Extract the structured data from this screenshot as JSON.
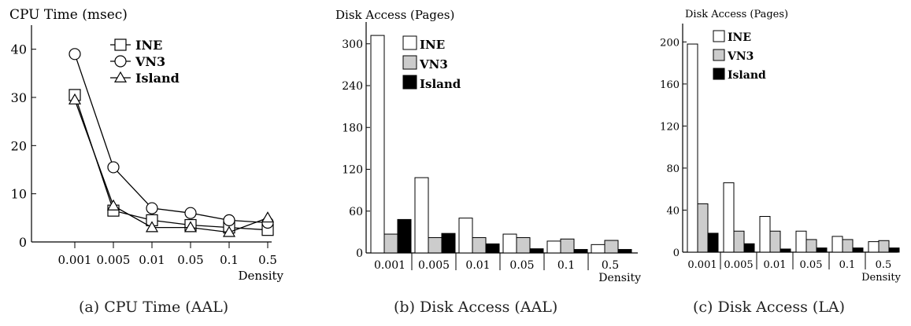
{
  "chart_data": [
    {
      "type": "line",
      "title": "CPU Time (msec)",
      "xlabel": "Density",
      "categories": [
        "0.001",
        "0.005",
        "0.01",
        "0.05",
        "0.1",
        "0.5"
      ],
      "ylim": [
        0,
        45
      ],
      "yticks": [
        0,
        10,
        20,
        30,
        40
      ],
      "legend_position": "top-center",
      "series": [
        {
          "name": "INE",
          "marker": "square",
          "values": [
            30.5,
            6.5,
            4.5,
            3.5,
            3.0,
            2.5
          ]
        },
        {
          "name": "VN3",
          "marker": "circle",
          "values": [
            39,
            15.5,
            7,
            6,
            4.5,
            4
          ]
        },
        {
          "name": "Island",
          "marker": "triangle",
          "values": [
            29.5,
            7.5,
            3,
            3,
            2,
            5
          ]
        }
      ],
      "caption": "(a)  CPU Time (AAL)"
    },
    {
      "type": "bar",
      "title": "Disk Access (Pages)",
      "xlabel": "Density",
      "categories": [
        "0.001",
        "0.005",
        "0.01",
        "0.05",
        "0.1",
        "0.5"
      ],
      "ylim": [
        0,
        320
      ],
      "yticks": [
        0,
        60,
        120,
        180,
        240,
        300
      ],
      "legend_position": "top-left",
      "series": [
        {
          "name": "INE",
          "fill": "#ffffff",
          "values": [
            312,
            108,
            50,
            27,
            17,
            12
          ]
        },
        {
          "name": "VN3",
          "fill": "#cccccc",
          "values": [
            27,
            22,
            22,
            22,
            20,
            18
          ]
        },
        {
          "name": "Island",
          "fill": "#000000",
          "values": [
            48,
            28,
            13,
            6,
            5,
            5
          ]
        }
      ],
      "caption": "(b)  Disk Access (AAL)"
    },
    {
      "type": "bar",
      "title": "Disk Access (Pages)",
      "xlabel": "Density",
      "categories": [
        "0.001",
        "0.005",
        "0.01",
        "0.05",
        "0.1",
        "0.5"
      ],
      "ylim": [
        0,
        210
      ],
      "yticks": [
        0,
        40,
        80,
        120,
        160,
        200
      ],
      "legend_position": "top-left",
      "series": [
        {
          "name": "INE",
          "fill": "#ffffff",
          "values": [
            198,
            66,
            34,
            20,
            15,
            10
          ]
        },
        {
          "name": "VN3",
          "fill": "#cccccc",
          "values": [
            46,
            20,
            20,
            12,
            12,
            11
          ]
        },
        {
          "name": "Island",
          "fill": "#000000",
          "values": [
            18,
            8,
            3,
            4,
            4,
            4
          ]
        }
      ],
      "caption": "(c)  Disk Access (LA)"
    }
  ]
}
